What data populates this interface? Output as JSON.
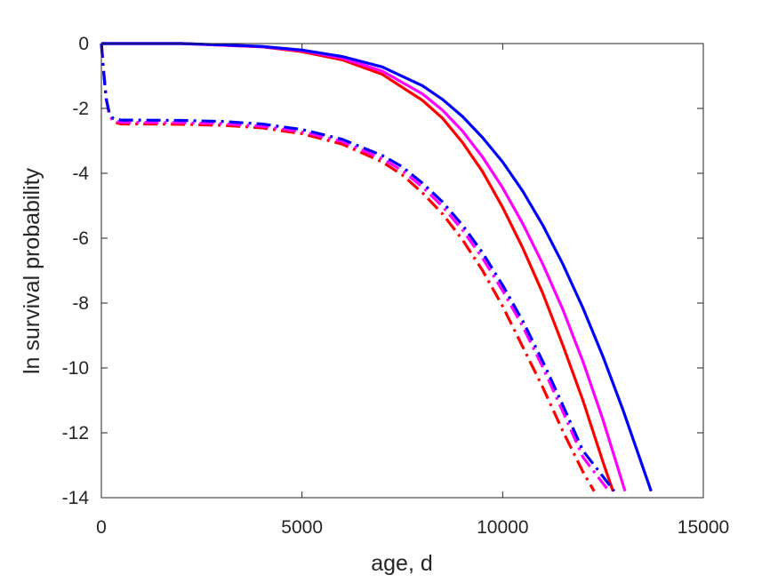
{
  "chart_data": {
    "type": "line",
    "title": "",
    "xlabel": "age, d",
    "ylabel": "ln survival probability",
    "xlim": [
      0,
      15000
    ],
    "ylim": [
      -14,
      0
    ],
    "xticks": [
      0,
      5000,
      10000,
      15000
    ],
    "yticks": [
      0,
      -2,
      -4,
      -6,
      -8,
      -10,
      -12,
      -14
    ],
    "grid": false,
    "legend": "none",
    "series": [
      {
        "color": "#ff0000",
        "style": "solid",
        "x": [
          0,
          1000,
          2000,
          3000,
          4000,
          5000,
          6000,
          7000,
          8000,
          8500,
          9000,
          9500,
          10000,
          10500,
          11000,
          11500,
          12000,
          12500,
          12750
        ],
        "y": [
          0,
          0,
          0,
          -0.05,
          -0.1,
          -0.25,
          -0.5,
          -0.95,
          -1.75,
          -2.3,
          -3.05,
          -3.95,
          -5.05,
          -6.3,
          -7.7,
          -9.3,
          -11.0,
          -12.9,
          -13.8
        ]
      },
      {
        "color": "#ff00ff",
        "style": "solid",
        "x": [
          0,
          1000,
          2000,
          3000,
          4000,
          5000,
          6000,
          7000,
          8000,
          8500,
          9000,
          9500,
          10000,
          10500,
          11000,
          11500,
          12000,
          12500,
          13050
        ],
        "y": [
          0,
          0,
          0,
          -0.05,
          -0.1,
          -0.22,
          -0.45,
          -0.85,
          -1.55,
          -2.05,
          -2.7,
          -3.5,
          -4.45,
          -5.55,
          -6.8,
          -8.2,
          -9.8,
          -11.6,
          -13.8
        ]
      },
      {
        "color": "#0000ff",
        "style": "solid",
        "x": [
          0,
          1000,
          2000,
          3000,
          4000,
          5000,
          6000,
          7000,
          8000,
          8500,
          9000,
          9500,
          10000,
          10500,
          11000,
          11500,
          12000,
          12500,
          13000,
          13700
        ],
        "y": [
          0,
          0,
          0,
          -0.04,
          -0.09,
          -0.2,
          -0.4,
          -0.72,
          -1.3,
          -1.72,
          -2.25,
          -2.9,
          -3.65,
          -4.55,
          -5.6,
          -6.8,
          -8.15,
          -9.65,
          -11.3,
          -13.8
        ]
      },
      {
        "color": "#ff0000",
        "style": "dashdot",
        "x": [
          0,
          60,
          120,
          200,
          300,
          500,
          1000,
          2000,
          3000,
          4000,
          5000,
          6000,
          7000,
          7500,
          8000,
          8500,
          9000,
          9500,
          10000,
          10500,
          11000,
          11500,
          12000,
          12280
        ],
        "y": [
          0,
          -0.9,
          -1.7,
          -2.2,
          -2.42,
          -2.48,
          -2.48,
          -2.49,
          -2.52,
          -2.6,
          -2.78,
          -3.1,
          -3.65,
          -4.05,
          -4.6,
          -5.25,
          -6.05,
          -7.0,
          -8.1,
          -9.35,
          -10.6,
          -11.95,
          -13.2,
          -13.8
        ]
      },
      {
        "color": "#ff00ff",
        "style": "dashdot",
        "x": [
          0,
          60,
          120,
          200,
          300,
          500,
          1000,
          2000,
          3000,
          4000,
          5000,
          6000,
          7000,
          7500,
          8000,
          8500,
          9000,
          9500,
          10000,
          10500,
          11000,
          11500,
          12000,
          12400,
          12650
        ],
        "y": [
          0,
          -0.9,
          -1.7,
          -2.2,
          -2.38,
          -2.43,
          -2.43,
          -2.44,
          -2.47,
          -2.55,
          -2.72,
          -3.02,
          -3.55,
          -3.92,
          -4.42,
          -5.02,
          -5.75,
          -6.62,
          -7.62,
          -8.72,
          -9.98,
          -11.35,
          -12.75,
          -13.4,
          -13.8
        ]
      },
      {
        "color": "#0000ff",
        "style": "dashdot",
        "x": [
          0,
          60,
          120,
          200,
          300,
          500,
          1000,
          2000,
          3000,
          4000,
          5000,
          6000,
          7000,
          7500,
          8000,
          8500,
          9000,
          9500,
          10000,
          10500,
          11000,
          11500,
          12000,
          12500,
          12780
        ],
        "y": [
          0,
          -0.9,
          -1.7,
          -2.15,
          -2.32,
          -2.36,
          -2.36,
          -2.37,
          -2.4,
          -2.48,
          -2.65,
          -2.95,
          -3.45,
          -3.8,
          -4.3,
          -4.88,
          -5.6,
          -6.45,
          -7.45,
          -8.55,
          -9.8,
          -11.15,
          -12.55,
          -13.35,
          -13.8
        ]
      }
    ]
  }
}
